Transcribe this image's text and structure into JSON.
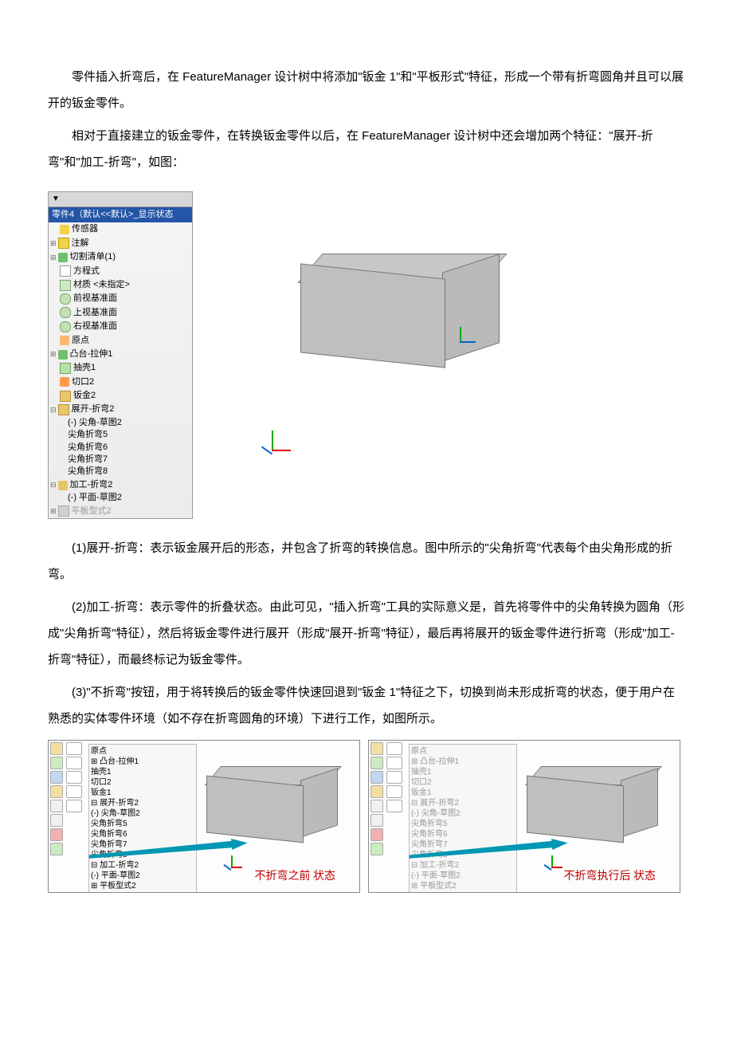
{
  "text": {
    "p1": "零件插入折弯后，在 FeatureManager 设计树中将添加\"钣金 1\"和\"平板形式\"特征，形成一个带有折弯圆角并且可以展开的钣金零件。",
    "p2": "相对于直接建立的钣金零件，在转换钣金零件以后，在 FeatureManager 设计树中还会增加两个特征：\"展开-折弯\"和\"加工-折弯\"，如图：",
    "p3": "(1)展开-折弯：表示钣金展开后的形态，并包含了折弯的转换信息。图中所示的\"尖角折弯\"代表每个由尖角形成的折弯。",
    "p4": "(2)加工-折弯：表示零件的折叠状态。由此可见，\"插入折弯\"工具的实际意义是，首先将零件中的尖角转换为圆角（形成\"尖角折弯\"特征），然后将钣金零件进行展开（形成\"展开-折弯\"特征），最后再将展开的钣金零件进行折弯（形成\"加工-折弯\"特征），而最终标记为钣金零件。",
    "p5": "(3)\"不折弯\"按钮，用于将转换后的钣金零件快速回退到\"钣金 1\"特征之下，切换到尚未形成折弯的状态，便于用户在熟悉的实体零件环境（如不存在折弯圆角的环境）下进行工作，如图所示。"
  },
  "tree": {
    "tabs": "▼",
    "header": "零件4（默认<<默认>_显示状态",
    "items": [
      {
        "icon": "ico-sensor",
        "label": "传感器",
        "indent": "tree-item"
      },
      {
        "icon": "ico-note",
        "label": "注解",
        "indent": "tree-item collapsed"
      },
      {
        "icon": "ico-list",
        "label": "切割清单(1)",
        "indent": "tree-item collapsed"
      },
      {
        "icon": "ico-eq",
        "label": "方程式",
        "indent": "tree-item"
      },
      {
        "icon": "ico-mat",
        "label": "材质 <未指定>",
        "indent": "tree-item"
      },
      {
        "icon": "ico-plane",
        "label": "前视基准面",
        "indent": "tree-item"
      },
      {
        "icon": "ico-plane",
        "label": "上视基准面",
        "indent": "tree-item"
      },
      {
        "icon": "ico-plane",
        "label": "右视基准面",
        "indent": "tree-item"
      },
      {
        "icon": "ico-origin",
        "label": "原点",
        "indent": "tree-item"
      },
      {
        "icon": "ico-extrude",
        "label": "凸台-拉伸1",
        "indent": "tree-item collapsed"
      },
      {
        "icon": "ico-shell",
        "label": "抽壳1",
        "indent": "tree-item"
      },
      {
        "icon": "ico-cut",
        "label": "切口2",
        "indent": "tree-item"
      },
      {
        "icon": "ico-sheet",
        "label": "钣金2",
        "indent": "tree-item"
      },
      {
        "icon": "ico-bend",
        "label": "展开-折弯2",
        "indent": "tree-item expanded"
      },
      {
        "icon": "ico-sketch",
        "label": "(-) 尖角-草图2",
        "indent": "tree-sub"
      },
      {
        "icon": "ico-corner",
        "label": "尖角折弯5",
        "indent": "tree-sub"
      },
      {
        "icon": "ico-corner",
        "label": "尖角折弯6",
        "indent": "tree-sub"
      },
      {
        "icon": "ico-corner",
        "label": "尖角折弯7",
        "indent": "tree-sub"
      },
      {
        "icon": "ico-corner",
        "label": "尖角折弯8",
        "indent": "tree-sub"
      },
      {
        "icon": "ico-proc",
        "label": "加工-折弯2",
        "indent": "tree-item expanded"
      },
      {
        "icon": "ico-sketch",
        "label": "(-) 平面-草图2",
        "indent": "tree-sub"
      },
      {
        "icon": "ico-flat",
        "label": "平板型式2",
        "indent": "tree-item collapsed faded"
      }
    ]
  },
  "mini": {
    "leftCaption": "不折弯之前\n状态",
    "rightCaption": "不折弯执行后\n状态",
    "treeLeft": [
      "原点",
      "⊞ 凸台-拉伸1",
      "  抽壳1",
      "  切口2",
      "  钣金1",
      "⊟ 展开-折弯2",
      "   (-) 尖角-草图2",
      "   尖角折弯5",
      "   尖角折弯6",
      "   尖角折弯7",
      "   尖角折弯8",
      "⊟ 加工-折弯2",
      "   (-) 平面-草图2",
      "⊞ 平板型式2"
    ],
    "treeRight": [
      "原点",
      "⊞ 凸台-拉伸1",
      "  抽壳1",
      "  切口2",
      "  钣金1",
      "⊟ 展开-折弯2",
      "   (-) 尖角-草图2",
      "   尖角折弯5",
      "   尖角折弯6",
      "   尖角折弯7",
      "   尖角折弯8",
      "⊟ 加工-折弯2",
      "   (-) 平面-草图2",
      "⊞ 平板型式2"
    ]
  },
  "style": {
    "textColor": "#000000",
    "redTextColor": "#c00000",
    "arrowColor": "#0097b2",
    "treeHeaderBg": "#2456a8",
    "boxGray": "#bfbfbf"
  }
}
